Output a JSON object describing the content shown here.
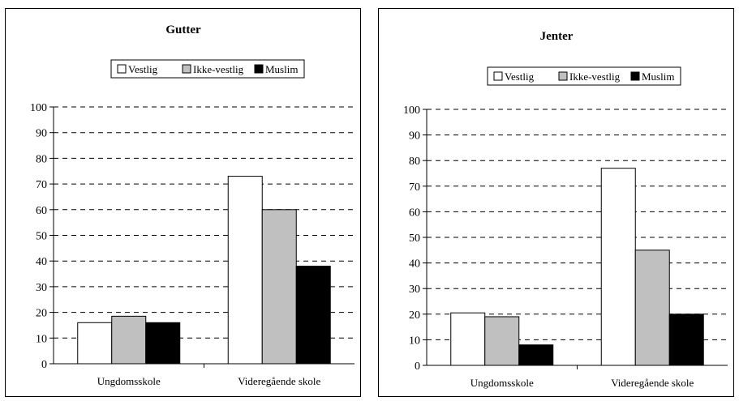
{
  "colors": {
    "vestlig": "#ffffff",
    "ikke_vestlig": "#c0c0c0",
    "muslim": "#000000"
  },
  "chart_data": [
    {
      "type": "bar",
      "title": "Gutter",
      "categories": [
        "Ungdomsskole",
        "Videregående skole"
      ],
      "series": [
        {
          "name": "Vestlig",
          "values": [
            16,
            73
          ]
        },
        {
          "name": "Ikke-vestlig",
          "values": [
            18.5,
            60
          ]
        },
        {
          "name": "Muslim",
          "values": [
            16,
            38
          ]
        }
      ],
      "ylim": [
        0,
        100
      ],
      "yticks": [
        0,
        10,
        20,
        30,
        40,
        50,
        60,
        70,
        80,
        90,
        100
      ],
      "grid": "dashed horizontal",
      "legend": "top"
    },
    {
      "type": "bar",
      "title": "Jenter",
      "categories": [
        "Ungdomsskole",
        "Videregående skole"
      ],
      "series": [
        {
          "name": "Vestlig",
          "values": [
            20.5,
            77
          ]
        },
        {
          "name": "Ikke-vestlig",
          "values": [
            19,
            45
          ]
        },
        {
          "name": "Muslim",
          "values": [
            8,
            20
          ]
        }
      ],
      "ylim": [
        0,
        100
      ],
      "yticks": [
        0,
        10,
        20,
        30,
        40,
        50,
        60,
        70,
        80,
        90,
        100
      ],
      "grid": "dashed horizontal",
      "legend": "top"
    }
  ]
}
